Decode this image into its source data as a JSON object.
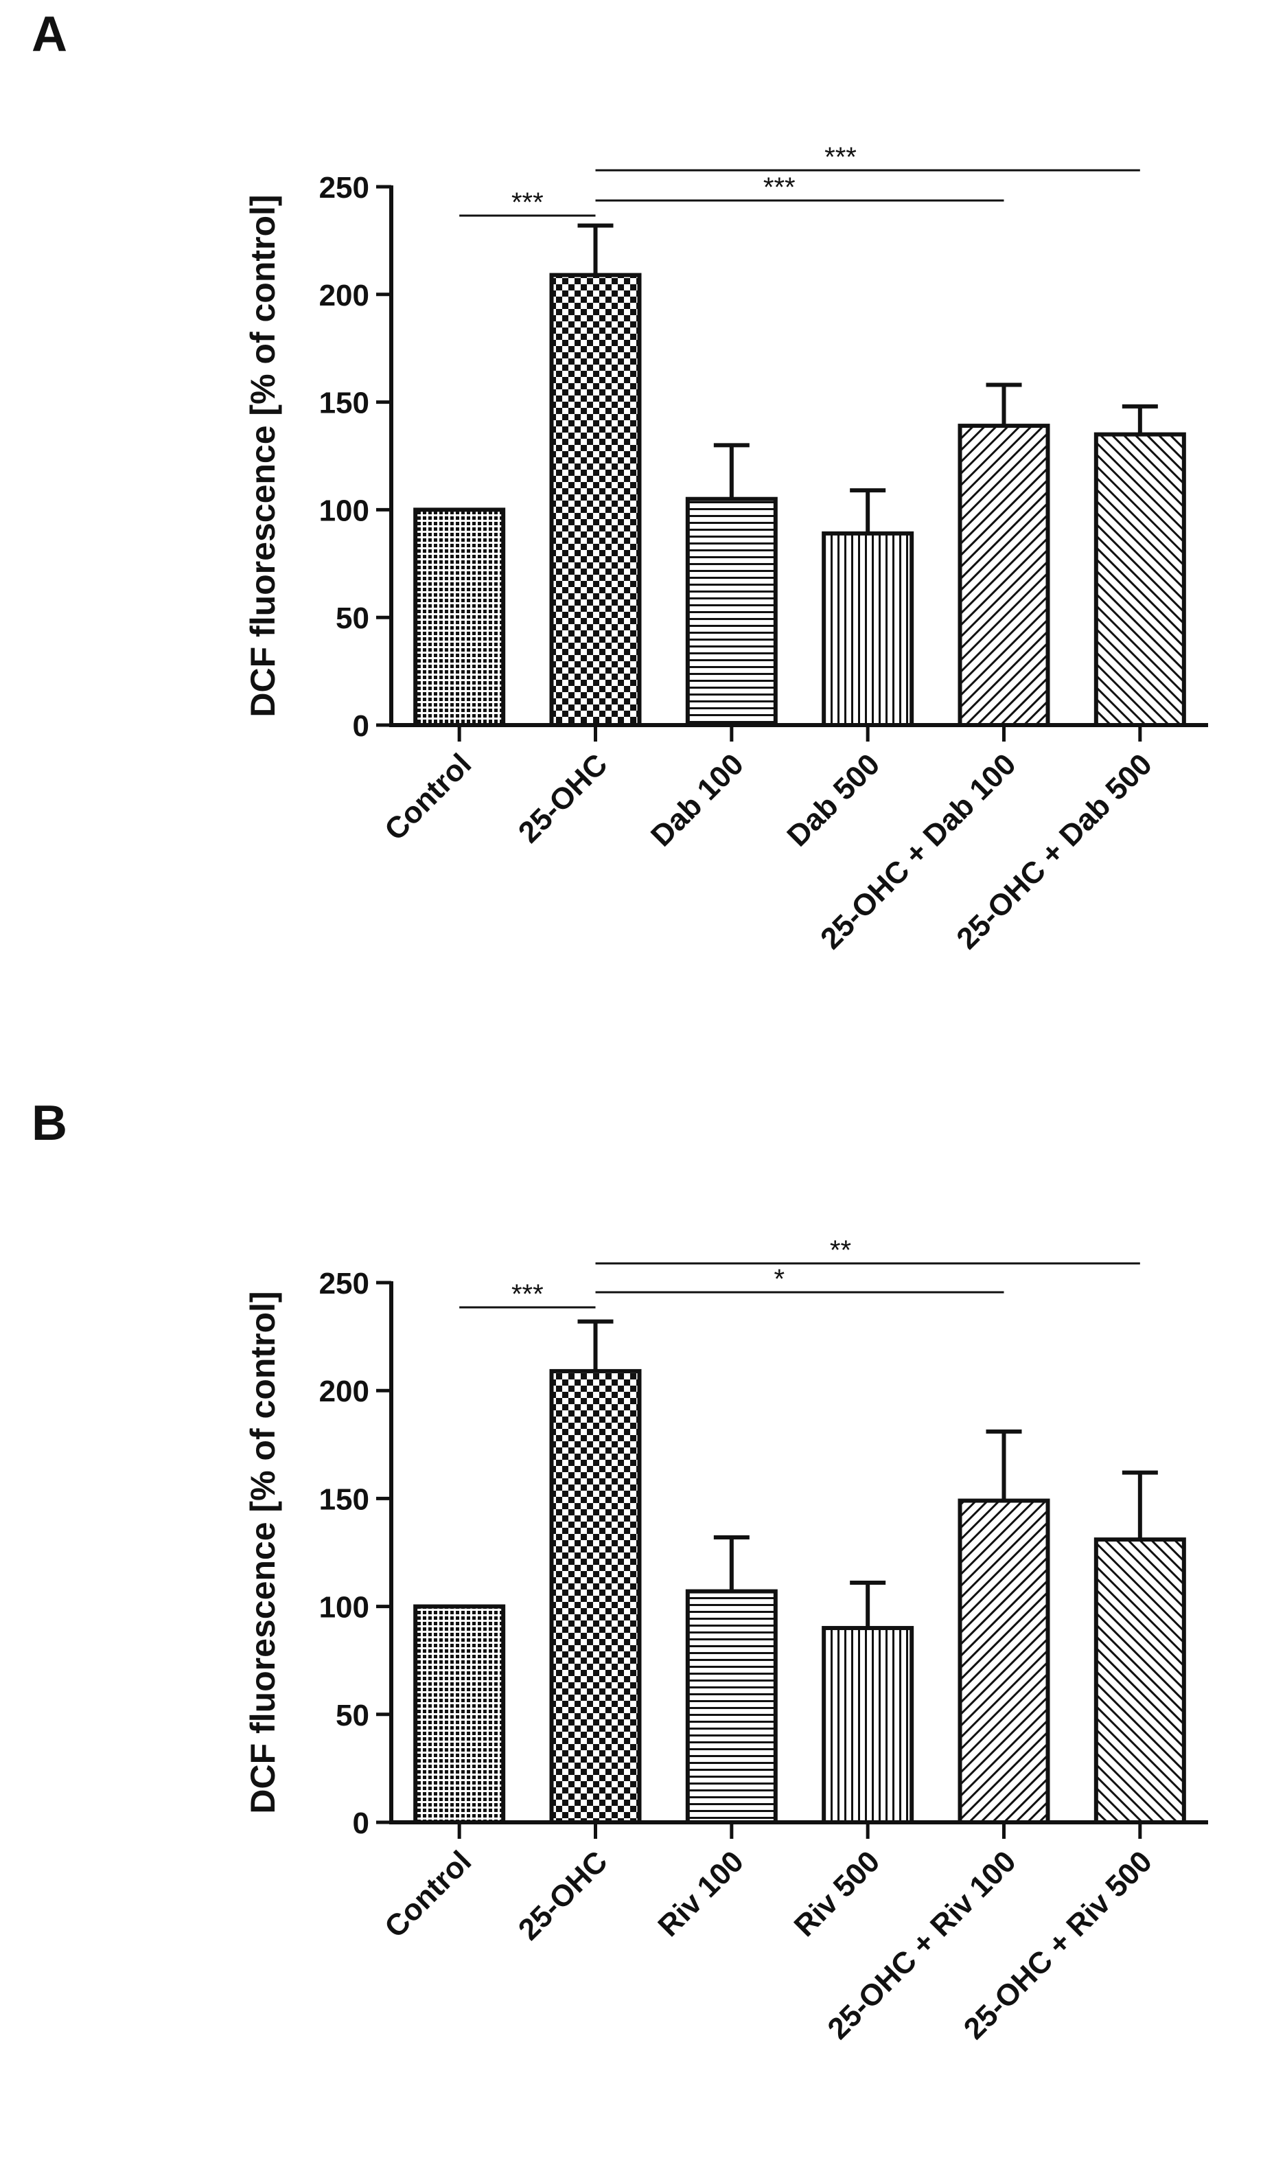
{
  "chart_data": [
    {
      "panel": "A",
      "type": "bar",
      "ylabel": "DCF fluorescence [% of control]",
      "xlabel": "",
      "ylim": [
        0,
        250
      ],
      "yticks": [
        0,
        50,
        100,
        150,
        200,
        250
      ],
      "categories": [
        "Control",
        "25-OHC",
        "Dab 100",
        "Dab 500",
        "25-OHC + Dab 100",
        "25-OHC + Dab 500"
      ],
      "values": [
        100,
        209,
        105,
        89,
        139,
        135
      ],
      "errors": [
        0,
        23,
        25,
        20,
        19,
        13
      ],
      "patterns": [
        "dots",
        "checker",
        "hlines",
        "vlines",
        "diag-up",
        "diag-down"
      ],
      "significance": [
        {
          "from": 0,
          "to": 1,
          "label": "***"
        },
        {
          "from": 1,
          "to": 4,
          "label": "***"
        },
        {
          "from": 1,
          "to": 5,
          "label": "***"
        }
      ]
    },
    {
      "panel": "B",
      "type": "bar",
      "ylabel": "DCF fluorescence [% of control]",
      "xlabel": "",
      "ylim": [
        0,
        250
      ],
      "yticks": [
        0,
        50,
        100,
        150,
        200,
        250
      ],
      "categories": [
        "Control",
        "25-OHC",
        "Riv 100",
        "Riv 500",
        "25-OHC + Riv 100",
        "25-OHC + Riv 500"
      ],
      "values": [
        100,
        209,
        107,
        90,
        149,
        131
      ],
      "errors": [
        0,
        23,
        25,
        21,
        32,
        31
      ],
      "patterns": [
        "dots",
        "checker",
        "hlines",
        "vlines",
        "diag-up",
        "diag-down"
      ],
      "significance": [
        {
          "from": 0,
          "to": 1,
          "label": "***"
        },
        {
          "from": 1,
          "to": 4,
          "label": "*"
        },
        {
          "from": 1,
          "to": 5,
          "label": "**"
        }
      ]
    }
  ]
}
